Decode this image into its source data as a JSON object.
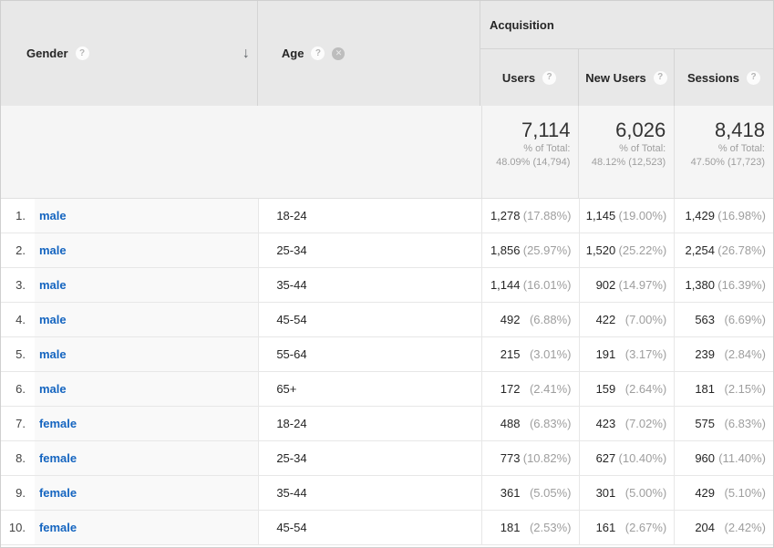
{
  "colors": {
    "link_blue": "#1565c0",
    "header_bg": "#e8e8e8",
    "summary_bg": "#f5f5f5",
    "dimension_cell_bg": "#f9f9f9",
    "border": "#e0e0e0",
    "text_dark": "#262626",
    "text_gray": "#9e9e9e"
  },
  "header": {
    "gender_label": "Gender",
    "age_label": "Age",
    "acquisition_label": "Acquisition",
    "users_label": "Users",
    "new_users_label": "New Users",
    "sessions_label": "Sessions",
    "help_icon": "?",
    "sort_icon": "↓",
    "remove_icon": "✕"
  },
  "summary": {
    "users": {
      "value": "7,114",
      "total_label": "% of Total:",
      "total_detail": "48.09% (14,794)"
    },
    "new_users": {
      "value": "6,026",
      "total_label": "% of Total:",
      "total_detail": "48.12% (12,523)"
    },
    "sessions": {
      "value": "8,418",
      "total_label": "% of Total:",
      "total_detail": "47.50% (17,723)"
    }
  },
  "rows": [
    {
      "index": "1.",
      "gender": "male",
      "age": "18-24",
      "users": "1,278",
      "users_pct": "(17.88%)",
      "new_users": "1,145",
      "new_users_pct": "(19.00%)",
      "sessions": "1,429",
      "sessions_pct": "(16.98%)"
    },
    {
      "index": "2.",
      "gender": "male",
      "age": "25-34",
      "users": "1,856",
      "users_pct": "(25.97%)",
      "new_users": "1,520",
      "new_users_pct": "(25.22%)",
      "sessions": "2,254",
      "sessions_pct": "(26.78%)"
    },
    {
      "index": "3.",
      "gender": "male",
      "age": "35-44",
      "users": "1,144",
      "users_pct": "(16.01%)",
      "new_users": "902",
      "new_users_pct": "(14.97%)",
      "sessions": "1,380",
      "sessions_pct": "(16.39%)"
    },
    {
      "index": "4.",
      "gender": "male",
      "age": "45-54",
      "users": "492",
      "users_pct": "(6.88%)",
      "new_users": "422",
      "new_users_pct": "(7.00%)",
      "sessions": "563",
      "sessions_pct": "(6.69%)"
    },
    {
      "index": "5.",
      "gender": "male",
      "age": "55-64",
      "users": "215",
      "users_pct": "(3.01%)",
      "new_users": "191",
      "new_users_pct": "(3.17%)",
      "sessions": "239",
      "sessions_pct": "(2.84%)"
    },
    {
      "index": "6.",
      "gender": "male",
      "age": "65+",
      "users": "172",
      "users_pct": "(2.41%)",
      "new_users": "159",
      "new_users_pct": "(2.64%)",
      "sessions": "181",
      "sessions_pct": "(2.15%)"
    },
    {
      "index": "7.",
      "gender": "female",
      "age": "18-24",
      "users": "488",
      "users_pct": "(6.83%)",
      "new_users": "423",
      "new_users_pct": "(7.02%)",
      "sessions": "575",
      "sessions_pct": "(6.83%)"
    },
    {
      "index": "8.",
      "gender": "female",
      "age": "25-34",
      "users": "773",
      "users_pct": "(10.82%)",
      "new_users": "627",
      "new_users_pct": "(10.40%)",
      "sessions": "960",
      "sessions_pct": "(11.40%)"
    },
    {
      "index": "9.",
      "gender": "female",
      "age": "35-44",
      "users": "361",
      "users_pct": "(5.05%)",
      "new_users": "301",
      "new_users_pct": "(5.00%)",
      "sessions": "429",
      "sessions_pct": "(5.10%)"
    },
    {
      "index": "10.",
      "gender": "female",
      "age": "45-54",
      "users": "181",
      "users_pct": "(2.53%)",
      "new_users": "161",
      "new_users_pct": "(2.67%)",
      "sessions": "204",
      "sessions_pct": "(2.42%)"
    }
  ]
}
